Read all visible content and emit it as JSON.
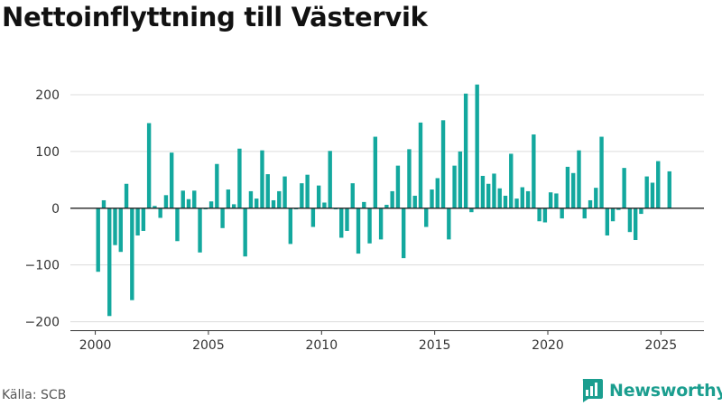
{
  "chart_data": {
    "type": "bar",
    "title": "Nettoinflyttning till Västervik",
    "xlabel": "",
    "ylabel": "",
    "x_ticks": [
      "2000",
      "2005",
      "2010",
      "2015",
      "2020",
      "2025"
    ],
    "y_ticks": [
      "200",
      "100",
      "0",
      "−100",
      "−200"
    ],
    "ylim": [
      -215,
      235
    ],
    "xlim": [
      1998.9,
      2026.9
    ],
    "grid": "horizontal",
    "bar_color": "#13a89e",
    "x": [
      2000.125,
      2000.375,
      2000.625,
      2000.875,
      2001.125,
      2001.375,
      2001.625,
      2001.875,
      2002.125,
      2002.375,
      2002.625,
      2002.875,
      2003.125,
      2003.375,
      2003.625,
      2003.875,
      2004.125,
      2004.375,
      2004.625,
      2004.875,
      2005.125,
      2005.375,
      2005.625,
      2005.875,
      2006.125,
      2006.375,
      2006.625,
      2006.875,
      2007.125,
      2007.375,
      2007.625,
      2007.875,
      2008.125,
      2008.375,
      2008.625,
      2008.875,
      2009.125,
      2009.375,
      2009.625,
      2009.875,
      2010.125,
      2010.375,
      2010.625,
      2010.875,
      2011.125,
      2011.375,
      2011.625,
      2011.875,
      2012.125,
      2012.375,
      2012.625,
      2012.875,
      2013.125,
      2013.375,
      2013.625,
      2013.875,
      2014.125,
      2014.375,
      2014.625,
      2014.875,
      2015.125,
      2015.375,
      2015.625,
      2015.875,
      2016.125,
      2016.375,
      2016.625,
      2016.875,
      2017.125,
      2017.375,
      2017.625,
      2017.875,
      2018.125,
      2018.375,
      2018.625,
      2018.875,
      2019.125,
      2019.375,
      2019.625,
      2019.875,
      2020.125,
      2020.375,
      2020.625,
      2020.875,
      2021.125,
      2021.375,
      2021.625,
      2021.875,
      2022.125,
      2022.375,
      2022.625,
      2022.875,
      2023.125,
      2023.375,
      2023.625,
      2023.875,
      2024.125,
      2024.375,
      2024.625,
      2024.875,
      2025.125,
      2025.375
    ],
    "values": [
      -112,
      14,
      -190,
      -65,
      -77,
      43,
      -162,
      -48,
      -40,
      150,
      4,
      -17,
      23,
      98,
      -58,
      31,
      16,
      31,
      -78,
      -2,
      12,
      78,
      -35,
      33,
      7,
      105,
      -85,
      30,
      17,
      102,
      60,
      14,
      30,
      56,
      -63,
      -2,
      44,
      59,
      -33,
      40,
      10,
      101,
      -2,
      -52,
      -40,
      44,
      -80,
      11,
      -62,
      126,
      -55,
      6,
      30,
      75,
      -88,
      104,
      22,
      151,
      -33,
      33,
      53,
      155,
      -55,
      75,
      100,
      202,
      -7,
      218,
      57,
      43,
      61,
      35,
      22,
      96,
      17,
      37,
      30,
      130,
      -23,
      -25,
      28,
      26,
      -18,
      73,
      62,
      102,
      -18,
      14,
      36,
      126,
      -48,
      -23,
      -3,
      71,
      -42,
      -56,
      -10,
      56,
      45,
      83,
      -1,
      65
    ]
  },
  "footer": {
    "source": "Källa: SCB",
    "brand": "Newsworthy",
    "brand_color": "#1b9e8f",
    "logo_icon": "bar-chart-speech-bubble-icon"
  }
}
